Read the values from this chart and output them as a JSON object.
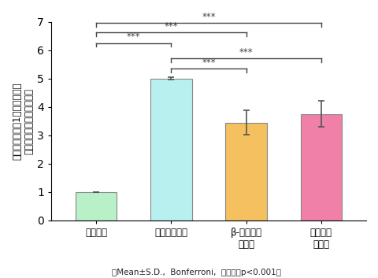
{
  "categories": [
    "非発症群",
    "皮膚炎発症群",
    "β-カロテン\n摂取群",
    "リコピン\n摂取群"
  ],
  "values": [
    1.0,
    5.0,
    3.45,
    3.75
  ],
  "errors": [
    0.0,
    0.05,
    0.42,
    0.45
  ],
  "bar_colors": [
    "#b8f0c8",
    "#b8f0f0",
    "#f5c060",
    "#f080a8"
  ],
  "bar_edge_colors": [
    "#888888",
    "#888888",
    "#888888",
    "#888888"
  ],
  "ylim": [
    0,
    7
  ],
  "yticks": [
    0,
    1,
    2,
    3,
    4,
    5,
    6,
    7
  ],
  "ylabel_line1": "非発症群の値を1としたときの",
  "ylabel_line2": "皮膚の炎症細胞数の相対比",
  "footnote": "Mean±S.D.,  Bonferroni,  ＊＊＊；p<0.001）",
  "footnote_prefix": "（",
  "sig_lines": [
    {
      "i1": 0,
      "i2": 1,
      "y": 6.25,
      "label": "***",
      "color": "#444444"
    },
    {
      "i1": 0,
      "i2": 2,
      "y": 6.62,
      "label": "***",
      "color": "#444444"
    },
    {
      "i1": 0,
      "i2": 3,
      "y": 6.95,
      "label": "***",
      "color": "#444444"
    },
    {
      "i1": 1,
      "i2": 2,
      "y": 5.35,
      "label": "***",
      "color": "#444444"
    },
    {
      "i1": 1,
      "i2": 3,
      "y": 5.7,
      "label": "***",
      "color": "#444444"
    }
  ],
  "background_color": "#ffffff",
  "bar_width": 0.55
}
